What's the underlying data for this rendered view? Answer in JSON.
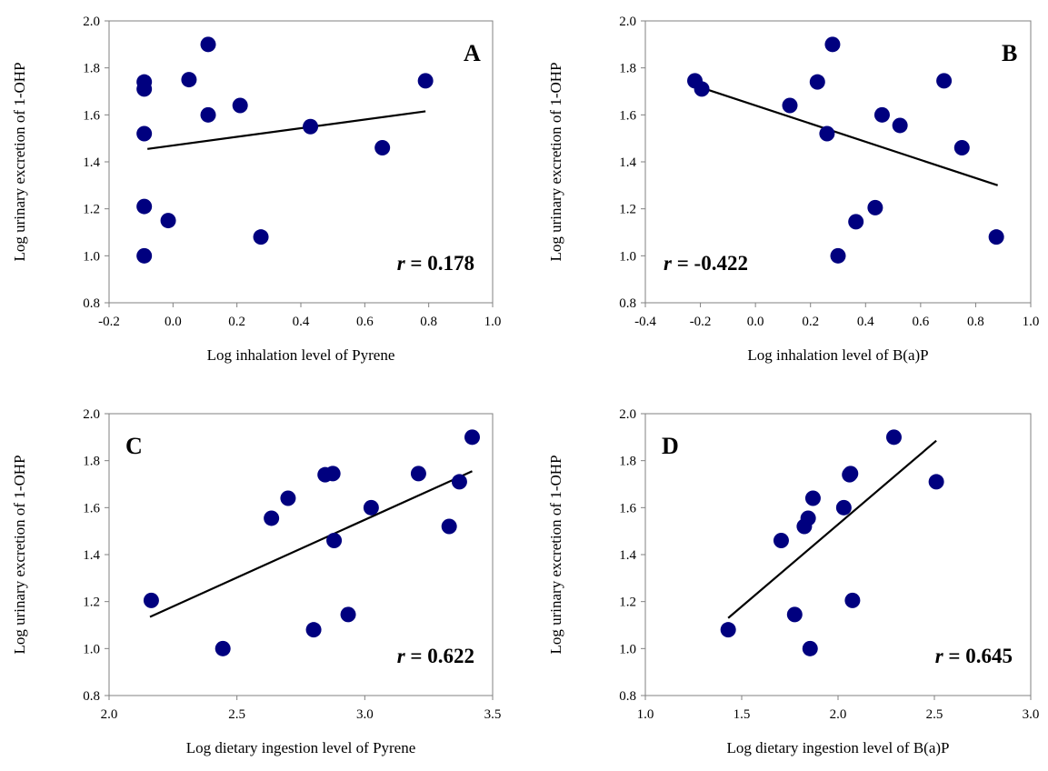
{
  "colors": {
    "marker": "#00007F",
    "line": "#000000",
    "axis": "#808080"
  },
  "chart_data": [
    {
      "panel": "A",
      "type": "scatter",
      "xlabel": "Log inhalation level of Pyrene",
      "ylabel": "Log urinary excretion of 1-OHP",
      "xlim": [
        -0.2,
        1.0
      ],
      "ylim": [
        0.8,
        2.0
      ],
      "xticks": [
        "-0.2",
        "0.0",
        "0.2",
        "0.4",
        "0.6",
        "0.8",
        "1.0"
      ],
      "yticks": [
        "0.8",
        "1.0",
        "1.2",
        "1.4",
        "1.6",
        "1.8",
        "2.0"
      ],
      "r_label": "r",
      "r_value": "= 0.178",
      "r_position": "bottom-right",
      "trendline": {
        "x": [
          -0.08,
          0.79
        ],
        "y": [
          1.455,
          1.615
        ]
      },
      "points": [
        {
          "x": -0.09,
          "y": 1.74
        },
        {
          "x": -0.09,
          "y": 1.71
        },
        {
          "x": -0.09,
          "y": 1.52
        },
        {
          "x": -0.09,
          "y": 1.21
        },
        {
          "x": -0.09,
          "y": 1.0
        },
        {
          "x": -0.015,
          "y": 1.15
        },
        {
          "x": 0.05,
          "y": 1.75
        },
        {
          "x": 0.11,
          "y": 1.9
        },
        {
          "x": 0.11,
          "y": 1.6
        },
        {
          "x": 0.21,
          "y": 1.64
        },
        {
          "x": 0.275,
          "y": 1.08
        },
        {
          "x": 0.43,
          "y": 1.55
        },
        {
          "x": 0.655,
          "y": 1.46
        },
        {
          "x": 0.79,
          "y": 1.745
        }
      ]
    },
    {
      "panel": "B",
      "type": "scatter",
      "xlabel": "Log inhalation level of B(a)P",
      "ylabel": "Log urinary excretion of 1-OHP",
      "xlim": [
        -0.4,
        1.0
      ],
      "ylim": [
        0.8,
        2.0
      ],
      "xticks": [
        "-0.4",
        "-0.2",
        "0.0",
        "0.2",
        "0.4",
        "0.6",
        "0.8",
        "1.0"
      ],
      "yticks": [
        "0.8",
        "1.0",
        "1.2",
        "1.4",
        "1.6",
        "1.8",
        "2.0"
      ],
      "r_label": "r",
      "r_value": "= -0.422",
      "r_position": "bottom-left",
      "trendline": {
        "x": [
          -0.22,
          0.88
        ],
        "y": [
          1.725,
          1.3
        ]
      },
      "points": [
        {
          "x": -0.22,
          "y": 1.745
        },
        {
          "x": -0.195,
          "y": 1.71
        },
        {
          "x": 0.125,
          "y": 1.64
        },
        {
          "x": 0.225,
          "y": 1.74
        },
        {
          "x": 0.26,
          "y": 1.52
        },
        {
          "x": 0.28,
          "y": 1.9
        },
        {
          "x": 0.3,
          "y": 1.0
        },
        {
          "x": 0.365,
          "y": 1.145
        },
        {
          "x": 0.435,
          "y": 1.205
        },
        {
          "x": 0.46,
          "y": 1.6
        },
        {
          "x": 0.525,
          "y": 1.555
        },
        {
          "x": 0.685,
          "y": 1.745
        },
        {
          "x": 0.75,
          "y": 1.46
        },
        {
          "x": 0.875,
          "y": 1.08
        }
      ]
    },
    {
      "panel": "C",
      "type": "scatter",
      "xlabel": "Log dietary ingestion level of Pyrene",
      "ylabel": "Log urinary excretion of 1-OHP",
      "xlim": [
        2.0,
        3.5
      ],
      "ylim": [
        0.8,
        2.0
      ],
      "xticks": [
        "2.0",
        "2.5",
        "3.0",
        "3.5"
      ],
      "yticks": [
        "0.8",
        "1.0",
        "1.2",
        "1.4",
        "1.6",
        "1.8",
        "2.0"
      ],
      "r_label": "r",
      "r_value": "= 0.622",
      "r_position": "bottom-right",
      "trendline": {
        "x": [
          2.16,
          3.42
        ],
        "y": [
          1.135,
          1.755
        ]
      },
      "points": [
        {
          "x": 2.165,
          "y": 1.205
        },
        {
          "x": 2.445,
          "y": 1.0
        },
        {
          "x": 2.635,
          "y": 1.555
        },
        {
          "x": 2.7,
          "y": 1.64
        },
        {
          "x": 2.8,
          "y": 1.08
        },
        {
          "x": 2.845,
          "y": 1.74
        },
        {
          "x": 2.875,
          "y": 1.745
        },
        {
          "x": 2.88,
          "y": 1.46
        },
        {
          "x": 2.935,
          "y": 1.145
        },
        {
          "x": 3.025,
          "y": 1.6
        },
        {
          "x": 3.21,
          "y": 1.745
        },
        {
          "x": 3.33,
          "y": 1.52
        },
        {
          "x": 3.37,
          "y": 1.71
        },
        {
          "x": 3.42,
          "y": 1.9
        }
      ]
    },
    {
      "panel": "D",
      "type": "scatter",
      "xlabel": "Log dietary ingestion level of B(a)P",
      "ylabel": "Log urinary excretion of 1-OHP",
      "xlim": [
        1.0,
        3.0
      ],
      "ylim": [
        0.8,
        2.0
      ],
      "xticks": [
        "1.0",
        "1.5",
        "2.0",
        "2.5",
        "3.0"
      ],
      "yticks": [
        "0.8",
        "1.0",
        "1.2",
        "1.4",
        "1.6",
        "1.8",
        "2.0"
      ],
      "r_label": "r",
      "r_value": "= 0.645",
      "r_position": "bottom-right",
      "trendline": {
        "x": [
          1.43,
          2.51
        ],
        "y": [
          1.13,
          1.885
        ]
      },
      "points": [
        {
          "x": 1.43,
          "y": 1.08
        },
        {
          "x": 1.705,
          "y": 1.46
        },
        {
          "x": 1.775,
          "y": 1.145
        },
        {
          "x": 1.825,
          "y": 1.52
        },
        {
          "x": 1.845,
          "y": 1.555
        },
        {
          "x": 1.855,
          "y": 1.0
        },
        {
          "x": 1.87,
          "y": 1.64
        },
        {
          "x": 2.03,
          "y": 1.6
        },
        {
          "x": 2.06,
          "y": 1.74
        },
        {
          "x": 2.065,
          "y": 1.745
        },
        {
          "x": 2.075,
          "y": 1.205
        },
        {
          "x": 2.29,
          "y": 1.9
        },
        {
          "x": 2.51,
          "y": 1.71
        }
      ]
    }
  ]
}
